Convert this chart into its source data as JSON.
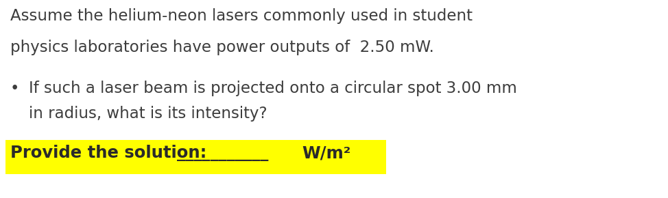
{
  "background_color": "#ffffff",
  "text_color": "#3d3d3d",
  "line1": "Assume the helium-neon lasers commonly used in student",
  "line2": "physics laboratories have power outputs of  2.50 mW.",
  "bullet_text_line1": "If such a laser beam is projected onto a circular spot 3.00 mm",
  "bullet_text_line2": "in radius, what is its intensity?",
  "solution_label": "Provide the solution:",
  "solution_units": "W/m²",
  "underline_text": "___________",
  "highlight_color": "#ffff00",
  "bold_color": "#2a2a2a",
  "main_fontsize": 16.5,
  "bullet_fontsize": 16.5,
  "solution_fontsize": 17.5,
  "fig_width": 9.74,
  "fig_height": 2.9,
  "dpi": 100
}
